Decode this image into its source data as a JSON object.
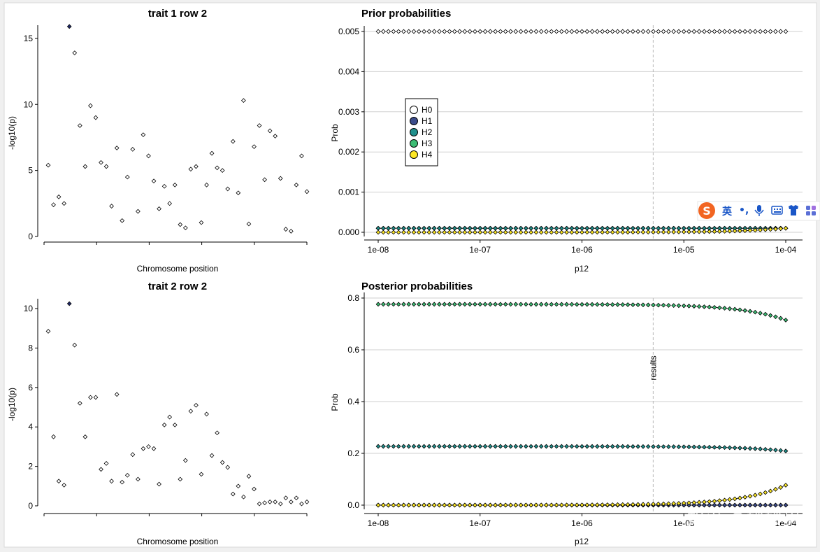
{
  "chart_data": [
    {
      "type": "scatter",
      "title": "trait 1 row 2",
      "xlabel": "Chromosome position",
      "ylabel": "-log10(p)",
      "ylim": [
        0,
        16
      ],
      "yticks": [
        0,
        5,
        10,
        15
      ],
      "highlight_index": 4,
      "y": [
        5.4,
        2.4,
        3.0,
        2.5,
        15.9,
        13.9,
        8.4,
        5.3,
        9.9,
        9.0,
        5.6,
        5.3,
        2.3,
        6.7,
        1.2,
        4.5,
        6.6,
        1.9,
        7.7,
        6.1,
        4.2,
        2.1,
        3.8,
        2.5,
        3.9,
        0.9,
        0.65,
        5.1,
        5.3,
        1.05,
        3.9,
        6.3,
        5.2,
        5.0,
        3.6,
        7.2,
        3.3,
        10.3,
        0.95,
        6.8,
        8.4,
        4.3,
        8.0,
        7.6,
        4.4,
        0.55,
        0.4,
        3.9,
        6.1,
        3.4
      ]
    },
    {
      "type": "scatter",
      "title": "trait 2 row 2",
      "xlabel": "Chromosome position",
      "ylabel": "-log10(p)",
      "ylim": [
        0,
        10.5
      ],
      "yticks": [
        0,
        2,
        4,
        6,
        8,
        10
      ],
      "highlight_index": 4,
      "y": [
        8.85,
        3.5,
        1.25,
        1.05,
        10.25,
        8.15,
        5.2,
        3.5,
        5.5,
        5.5,
        1.85,
        2.15,
        1.25,
        5.65,
        1.2,
        1.55,
        2.6,
        1.35,
        2.9,
        3.0,
        2.9,
        1.1,
        4.1,
        4.5,
        4.1,
        1.35,
        2.3,
        4.8,
        5.1,
        1.6,
        4.65,
        2.55,
        3.7,
        2.2,
        1.95,
        0.6,
        1.0,
        0.45,
        1.5,
        0.85,
        0.1,
        0.15,
        0.2,
        0.2,
        0.1,
        0.4,
        0.2,
        0.4,
        0.1,
        0.2
      ]
    },
    {
      "type": "line",
      "title": "Prior probabilities",
      "xlabel": "p12",
      "ylabel": "Prob",
      "xscale": "log10",
      "xlim": [
        1e-08,
        0.0001
      ],
      "xticks": [
        "1e-08",
        "1e-07",
        "1e-06",
        "1e-05",
        "1e-04"
      ],
      "ylim": [
        0,
        0.005
      ],
      "yticks": [
        "0.000",
        "0.001",
        "0.002",
        "0.003",
        "0.004",
        "0.005"
      ],
      "vline_x": 5e-06,
      "vline_label": "",
      "legend": {
        "placement": "left",
        "entries": [
          "H0",
          "H1",
          "H2",
          "H3",
          "H4"
        ]
      },
      "series": [
        {
          "name": "H0",
          "color": "#ffffff",
          "rule": "1 - p1 - p2 - p12"
        },
        {
          "name": "H1",
          "color": "#3b4b8a",
          "value": 0.0001
        },
        {
          "name": "H2",
          "color": "#21908d",
          "value": 0.0001
        },
        {
          "name": "H3",
          "color": "#3dbc74",
          "value": 0.0001
        },
        {
          "name": "H4",
          "color": "#fde725",
          "rule": "p12"
        }
      ]
    },
    {
      "type": "line",
      "title": "Posterior probabilities",
      "xlabel": "p12",
      "ylabel": "Prob",
      "xscale": "log10",
      "xlim": [
        1e-08,
        0.0001
      ],
      "xticks": [
        "1e-08",
        "1e-07",
        "1e-06",
        "1e-05",
        "1e-04"
      ],
      "ylim": [
        0,
        0.8
      ],
      "yticks": [
        "0.0",
        "0.2",
        "0.4",
        "0.6",
        "0.8"
      ],
      "vline_x": 5e-06,
      "vline_label": "results",
      "series": [
        {
          "name": "H0",
          "color": "#ffffff",
          "value": 0.0
        },
        {
          "name": "H1",
          "color": "#3b4b8a",
          "value": 0.0
        },
        {
          "name": "H2",
          "color": "#21908d",
          "start": 0.227,
          "end": 0.209
        },
        {
          "name": "H3",
          "color": "#3dbc74",
          "start": 0.776,
          "end": 0.715
        },
        {
          "name": "H4",
          "color": "#fde725",
          "start": 0.0,
          "end": 0.077
        }
      ]
    }
  ],
  "overlay": {
    "ime_bar": {
      "logo": "S",
      "lang": "英",
      "punct": "•,"
    },
    "watermark": "知乎 @妙妙男"
  }
}
